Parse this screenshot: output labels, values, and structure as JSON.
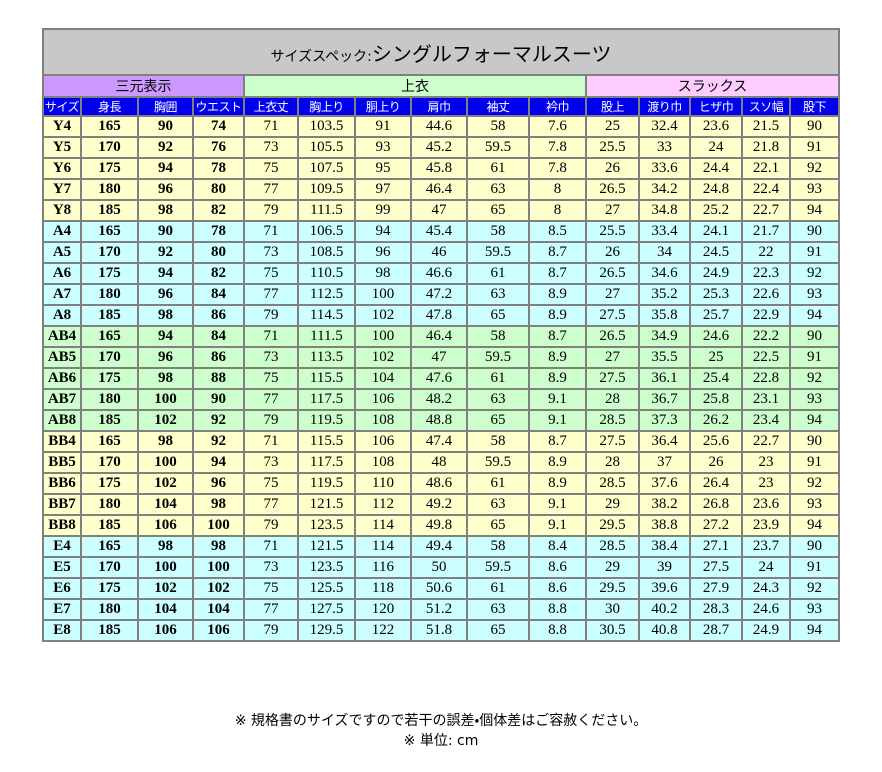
{
  "title": {
    "prefix": "サイズスペック:",
    "main": "シングルフォーマルスーツ"
  },
  "groups": [
    {
      "label": "三元表示",
      "span": 4
    },
    {
      "label": "上衣",
      "span": 6
    },
    {
      "label": "スラックス",
      "span": 5
    }
  ],
  "columns": [
    "サイズ",
    "身長",
    "胸囲",
    "ウエスト",
    "上衣丈",
    "胸上り",
    "胴上り",
    "肩巾",
    "袖丈",
    "衿巾",
    "股上",
    "渡り巾",
    "ヒザ巾",
    "スソ幅",
    "股下"
  ],
  "table": {
    "rows": [
      [
        "Y4",
        165,
        90,
        74,
        71,
        103.5,
        91,
        44.6,
        58,
        7.6,
        25,
        32.4,
        23.6,
        21.5,
        90
      ],
      [
        "Y5",
        170,
        92,
        76,
        73,
        105.5,
        93,
        45.2,
        59.5,
        7.8,
        25.5,
        33,
        24,
        21.8,
        91
      ],
      [
        "Y6",
        175,
        94,
        78,
        75,
        107.5,
        95,
        45.8,
        61,
        7.8,
        26,
        33.6,
        24.4,
        22.1,
        92
      ],
      [
        "Y7",
        180,
        96,
        80,
        77,
        109.5,
        97,
        46.4,
        63,
        8,
        26.5,
        34.2,
        24.8,
        22.4,
        93
      ],
      [
        "Y8",
        185,
        98,
        82,
        79,
        111.5,
        99,
        47,
        65,
        8,
        27,
        34.8,
        25.2,
        22.7,
        94
      ],
      [
        "A4",
        165,
        90,
        78,
        71,
        106.5,
        94,
        45.4,
        58,
        8.5,
        25.5,
        33.4,
        24.1,
        21.7,
        90
      ],
      [
        "A5",
        170,
        92,
        80,
        73,
        108.5,
        96,
        46,
        59.5,
        8.7,
        26,
        34,
        24.5,
        22,
        91
      ],
      [
        "A6",
        175,
        94,
        82,
        75,
        110.5,
        98,
        46.6,
        61,
        8.7,
        26.5,
        34.6,
        24.9,
        22.3,
        92
      ],
      [
        "A7",
        180,
        96,
        84,
        77,
        112.5,
        100,
        47.2,
        63,
        8.9,
        27,
        35.2,
        25.3,
        22.6,
        93
      ],
      [
        "A8",
        185,
        98,
        86,
        79,
        114.5,
        102,
        47.8,
        65,
        8.9,
        27.5,
        35.8,
        25.7,
        22.9,
        94
      ],
      [
        "AB4",
        165,
        94,
        84,
        71,
        111.5,
        100,
        46.4,
        58,
        8.7,
        26.5,
        34.9,
        24.6,
        22.2,
        90
      ],
      [
        "AB5",
        170,
        96,
        86,
        73,
        113.5,
        102,
        47,
        59.5,
        8.9,
        27,
        35.5,
        25,
        22.5,
        91
      ],
      [
        "AB6",
        175,
        98,
        88,
        75,
        115.5,
        104,
        47.6,
        61,
        8.9,
        27.5,
        36.1,
        25.4,
        22.8,
        92
      ],
      [
        "AB7",
        180,
        100,
        90,
        77,
        117.5,
        106,
        48.2,
        63,
        9.1,
        28,
        36.7,
        25.8,
        23.1,
        93
      ],
      [
        "AB8",
        185,
        102,
        92,
        79,
        119.5,
        108,
        48.8,
        65,
        9.1,
        28.5,
        37.3,
        26.2,
        23.4,
        94
      ],
      [
        "BB4",
        165,
        98,
        92,
        71,
        115.5,
        106,
        47.4,
        58,
        8.7,
        27.5,
        36.4,
        25.6,
        22.7,
        90
      ],
      [
        "BB5",
        170,
        100,
        94,
        73,
        117.5,
        108,
        48,
        59.5,
        8.9,
        28,
        37,
        26,
        23,
        91
      ],
      [
        "BB6",
        175,
        102,
        96,
        75,
        119.5,
        110,
        48.6,
        61,
        8.9,
        28.5,
        37.6,
        26.4,
        23,
        92
      ],
      [
        "BB7",
        180,
        104,
        98,
        77,
        121.5,
        112,
        49.2,
        63,
        9.1,
        29,
        38.2,
        26.8,
        23.6,
        93
      ],
      [
        "BB8",
        185,
        106,
        100,
        79,
        123.5,
        114,
        49.8,
        65,
        9.1,
        29.5,
        38.8,
        27.2,
        23.9,
        94
      ],
      [
        "E4",
        165,
        98,
        98,
        71,
        121.5,
        114,
        49.4,
        58,
        8.4,
        28.5,
        38.4,
        27.1,
        23.7,
        90
      ],
      [
        "E5",
        170,
        100,
        100,
        73,
        123.5,
        116,
        50,
        59.5,
        8.6,
        29,
        39,
        27.5,
        24,
        91
      ],
      [
        "E6",
        175,
        102,
        102,
        75,
        125.5,
        118,
        50.6,
        61,
        8.6,
        29.5,
        39.6,
        27.9,
        24.3,
        92
      ],
      [
        "E7",
        180,
        104,
        104,
        77,
        127.5,
        120,
        51.2,
        63,
        8.8,
        30,
        40.2,
        28.3,
        24.6,
        93
      ],
      [
        "E8",
        185,
        106,
        106,
        79,
        129.5,
        122,
        51.8,
        65,
        8.8,
        30.5,
        40.8,
        28.7,
        24.9,
        94
      ]
    ]
  },
  "notes": [
    "※ 規格書のサイズですので若干の誤差・個体差はご容赦ください。",
    "※ 単位: cm"
  ]
}
